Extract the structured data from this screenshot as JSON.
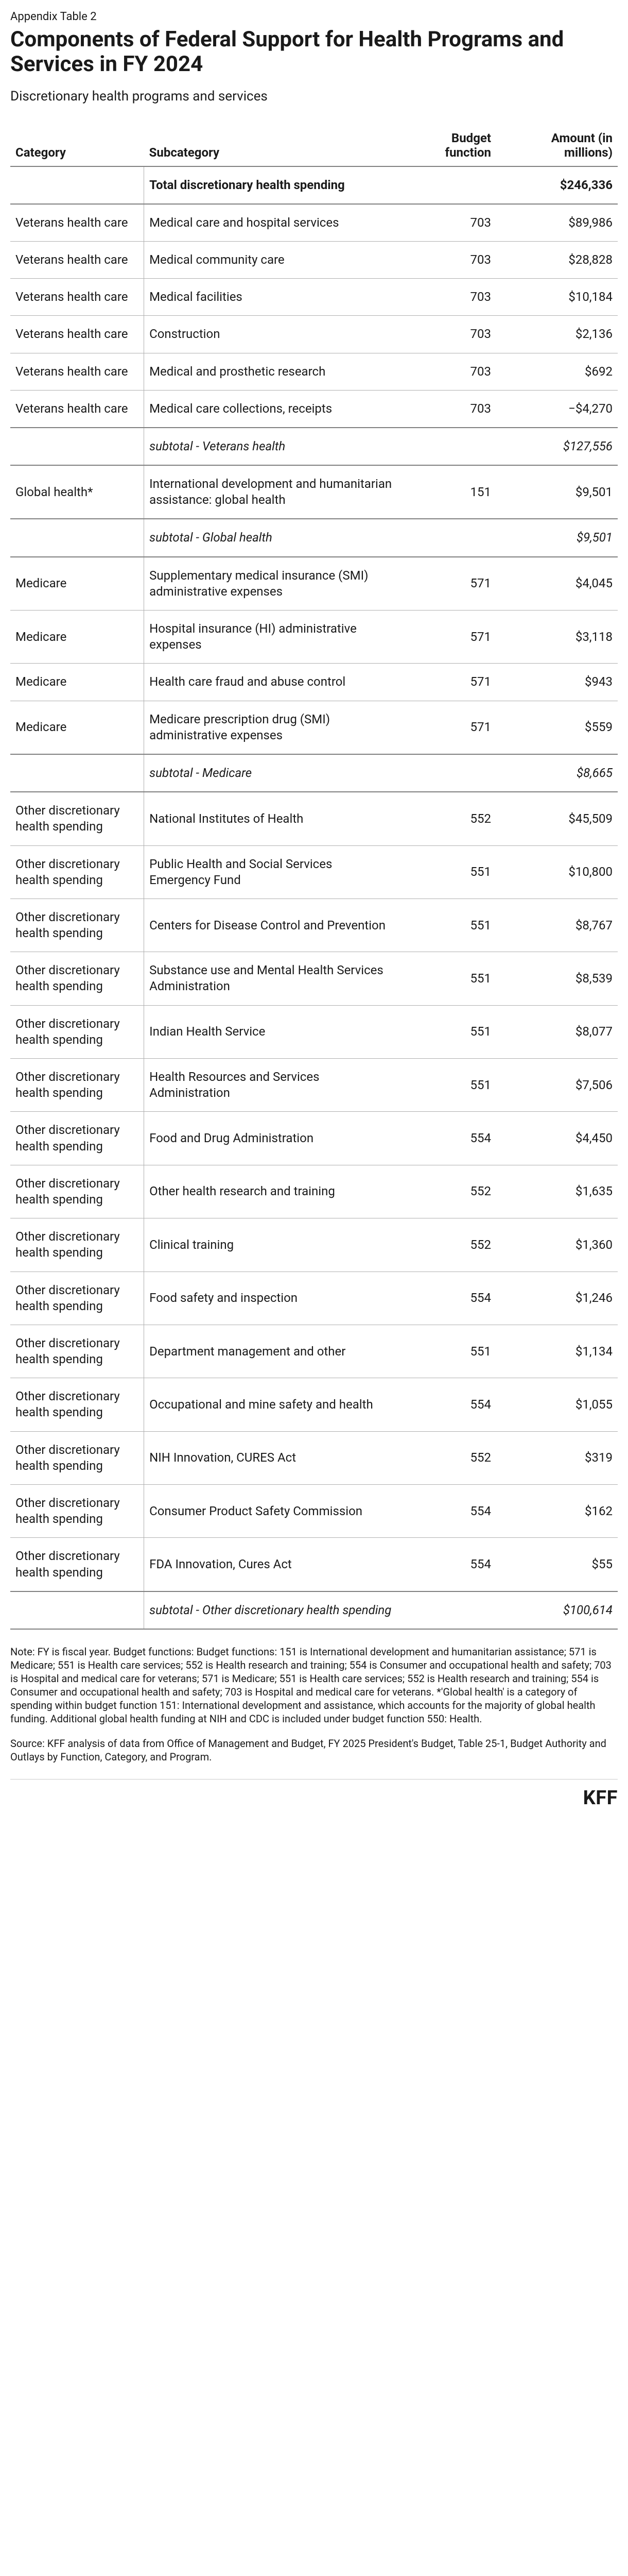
{
  "appendix_label": "Appendix Table 2",
  "title": "Components of Federal Support for Health Programs and Services in FY 2024",
  "subtitle": "Discretionary health programs and services",
  "columns": {
    "category": "Category",
    "subcategory": "Subcategory",
    "budget": "Budget function",
    "amount": "Amount (in millions)"
  },
  "total_row": {
    "label": "Total discretionary health spending",
    "amount": "$246,336"
  },
  "sections": [
    {
      "rows": [
        {
          "category": "Veterans health care",
          "subcategory": "Medical care and hospital services",
          "budget": "703",
          "amount": "$89,986"
        },
        {
          "category": "Veterans health care",
          "subcategory": "Medical community care",
          "budget": "703",
          "amount": "$28,828"
        },
        {
          "category": "Veterans health care",
          "subcategory": "Medical facilities",
          "budget": "703",
          "amount": "$10,184"
        },
        {
          "category": "Veterans health care",
          "subcategory": "Construction",
          "budget": "703",
          "amount": "$2,136"
        },
        {
          "category": "Veterans health care",
          "subcategory": "Medical and prosthetic research",
          "budget": "703",
          "amount": "$692"
        },
        {
          "category": "Veterans health care",
          "subcategory": "Medical care collections, receipts",
          "budget": "703",
          "amount": "−$4,270"
        }
      ],
      "subtotal": {
        "label": "subtotal - Veterans health",
        "amount": "$127,556"
      }
    },
    {
      "rows": [
        {
          "category": "Global health*",
          "subcategory": "International development and humanitarian assistance: global health",
          "budget": "151",
          "amount": "$9,501"
        }
      ],
      "subtotal": {
        "label": "subtotal - Global health",
        "amount": "$9,501"
      }
    },
    {
      "rows": [
        {
          "category": "Medicare",
          "subcategory": "Supplementary medical insurance (SMI) administrative expenses",
          "budget": "571",
          "amount": "$4,045"
        },
        {
          "category": "Medicare",
          "subcategory": "Hospital insurance (HI) administrative expenses",
          "budget": "571",
          "amount": "$3,118"
        },
        {
          "category": "Medicare",
          "subcategory": "Health care fraud and abuse control",
          "budget": "571",
          "amount": "$943"
        },
        {
          "category": "Medicare",
          "subcategory": "Medicare prescription drug (SMI) administrative expenses",
          "budget": "571",
          "amount": "$559"
        }
      ],
      "subtotal": {
        "label": "subtotal - Medicare",
        "amount": "$8,665"
      }
    },
    {
      "rows": [
        {
          "category": "Other discretionary health spending",
          "subcategory": "National Institutes of Health",
          "budget": "552",
          "amount": "$45,509"
        },
        {
          "category": "Other discretionary health spending",
          "subcategory": "Public Health and Social Services Emergency Fund",
          "budget": "551",
          "amount": "$10,800"
        },
        {
          "category": "Other discretionary health spending",
          "subcategory": "Centers for Disease Control and Prevention",
          "budget": "551",
          "amount": "$8,767"
        },
        {
          "category": "Other discretionary health spending",
          "subcategory": "Substance use and Mental Health Services Administration",
          "budget": "551",
          "amount": "$8,539"
        },
        {
          "category": "Other discretionary health spending",
          "subcategory": "Indian Health Service",
          "budget": "551",
          "amount": "$8,077"
        },
        {
          "category": "Other discretionary health spending",
          "subcategory": "Health Resources and Services Administration",
          "budget": "551",
          "amount": "$7,506"
        },
        {
          "category": "Other discretionary health spending",
          "subcategory": "Food and Drug Administration",
          "budget": "554",
          "amount": "$4,450"
        },
        {
          "category": "Other discretionary health spending",
          "subcategory": "Other health research and training",
          "budget": "552",
          "amount": "$1,635"
        },
        {
          "category": "Other discretionary health spending",
          "subcategory": "Clinical training",
          "budget": "552",
          "amount": "$1,360"
        },
        {
          "category": "Other discretionary health spending",
          "subcategory": "Food safety and inspection",
          "budget": "554",
          "amount": "$1,246"
        },
        {
          "category": "Other discretionary health spending",
          "subcategory": "Department management and other",
          "budget": "551",
          "amount": "$1,134"
        },
        {
          "category": "Other discretionary health spending",
          "subcategory": "Occupational and mine safety and health",
          "budget": "554",
          "amount": "$1,055"
        },
        {
          "category": "Other discretionary health spending",
          "subcategory": "NIH Innovation, CURES Act",
          "budget": "552",
          "amount": "$319"
        },
        {
          "category": "Other discretionary health spending",
          "subcategory": "Consumer Product Safety Commission",
          "budget": "554",
          "amount": "$162"
        },
        {
          "category": "Other discretionary health spending",
          "subcategory": "FDA Innovation, Cures Act",
          "budget": "554",
          "amount": "$55"
        }
      ],
      "subtotal": {
        "label": "subtotal - Other discretionary health spending",
        "amount": "$100,614"
      }
    }
  ],
  "note_text": "Note: FY is fiscal year. Budget functions: Budget functions: 151 is International development and humanitarian assistance; 571 is Medicare; 551 is Health care services; 552 is Health research and training; 554 is Consumer and occupational health and safety; 703 is Hospital and medical care for veterans; 571 is Medicare; 551 is Health care services; 552 is Health research and training; 554 is Consumer and occupational health and safety; 703 is Hospital and medical care for veterans.  *'Global health' is a category of spending within budget function 151: International development and assistance, which accounts for the majority of global health funding. Additional global health funding at NIH and CDC is included under budget function 550: Health.",
  "source_text": "Source: KFF analysis of data from Office of Management and Budget, FY 2025 President's Budget, Table 25-1, Budget Authority and Outlays by Function, Category, and Program.",
  "footer_logo": "KFF"
}
